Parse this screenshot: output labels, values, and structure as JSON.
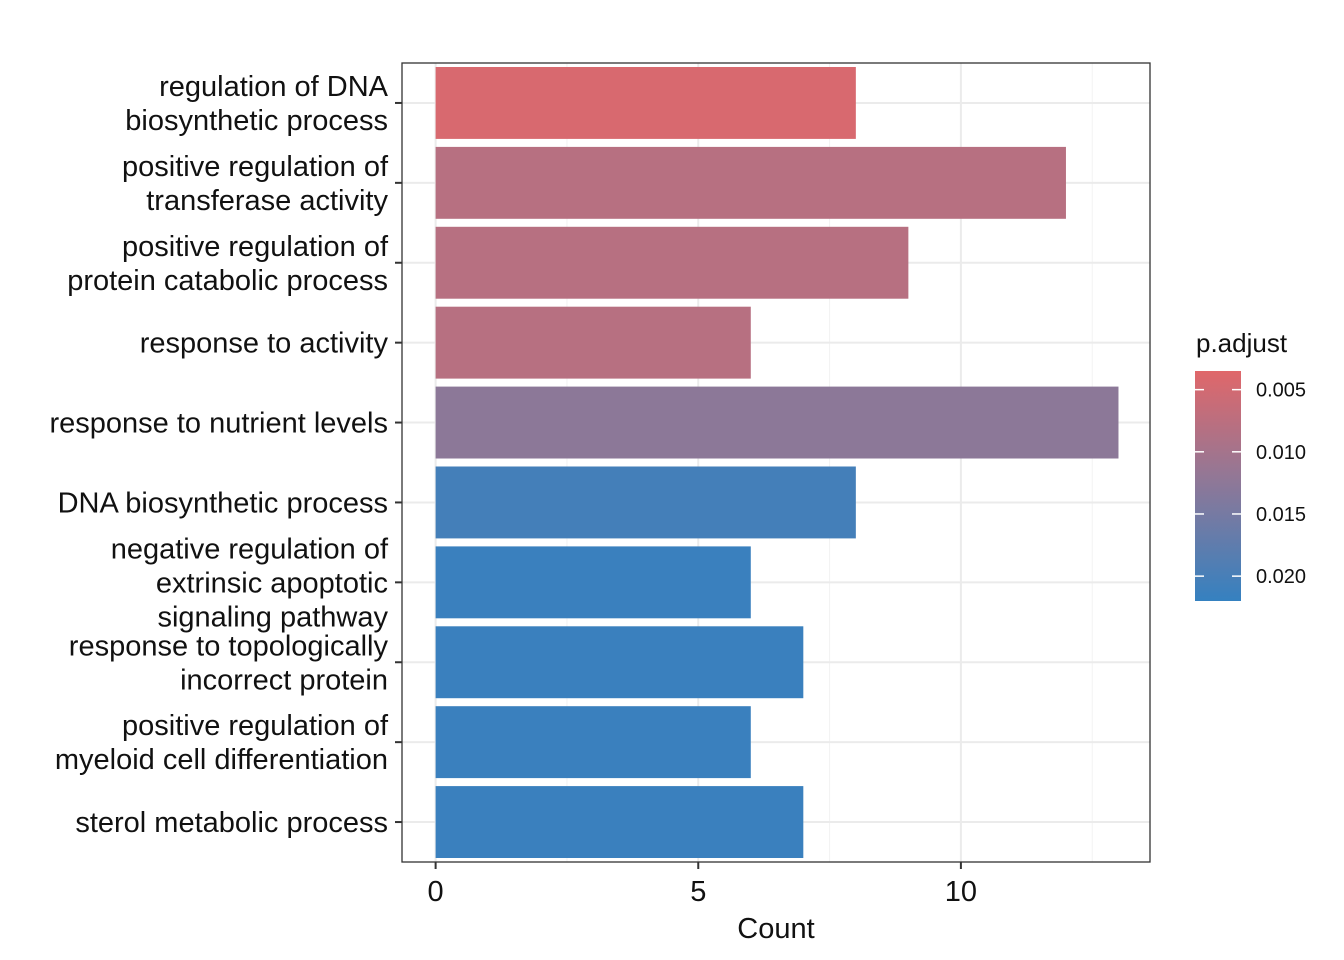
{
  "chart_data": {
    "type": "bar",
    "orientation": "horizontal",
    "xlabel": "Count",
    "ylabel": "",
    "xlim": [
      -0.64,
      13.6
    ],
    "xticks": [
      0,
      5,
      10
    ],
    "xtick_labels": [
      "0",
      "5",
      "10"
    ],
    "grid": true,
    "categories": [
      "regulation of DNA\nbiosynthetic process",
      "positive regulation of\ntransferase activity",
      "positive regulation of\nprotein catabolic process",
      "response to activity",
      "response to nutrient levels",
      "DNA biosynthetic process",
      "negative regulation of\nextrinsic apoptotic\nsignaling pathway",
      "response to topologically\nincorrect protein",
      "positive regulation of\nmyeloid cell differentiation",
      "sterol metabolic process"
    ],
    "values": [
      8,
      12,
      9,
      6,
      13,
      8,
      6,
      7,
      6,
      7
    ],
    "p_adjust": [
      0.0045,
      0.0085,
      0.0085,
      0.0085,
      0.0135,
      0.0205,
      0.0215,
      0.0215,
      0.0215,
      0.0215
    ],
    "color_scale": {
      "title": "p.adjust",
      "low_color": "#E0676A",
      "high_color": "#3581C0",
      "min": 0.0035,
      "max": 0.022,
      "ticks": [
        0.005,
        0.01,
        0.015,
        0.02
      ],
      "tick_labels": [
        "0.005",
        "0.010",
        "0.015",
        "0.020"
      ],
      "legend_position": "right"
    }
  }
}
